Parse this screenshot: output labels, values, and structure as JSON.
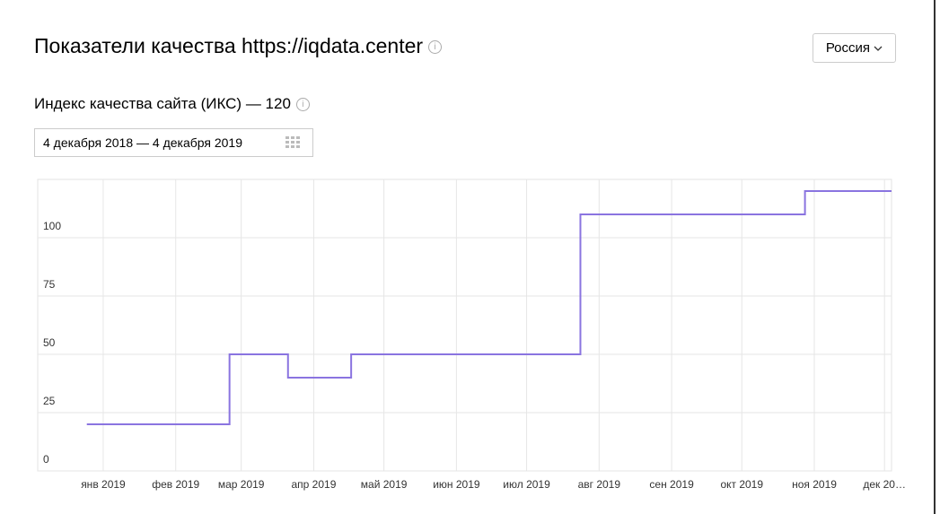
{
  "header": {
    "title": "Показатели качества https://iqdata.center",
    "region": "Россия"
  },
  "section": {
    "title": "Индекс качества сайта (ИКС) — 120",
    "date_range": "4 декабря 2018 — 4 декабря 2019"
  },
  "chart_data": {
    "type": "step-line",
    "x": [
      "2018-12-25",
      "2019-02-24",
      "2019-03-21",
      "2019-04-17",
      "2019-07-24",
      "2019-10-28",
      "2019-12-04"
    ],
    "series": [
      {
        "color": "#8a74e0",
        "values": [
          20,
          50,
          40,
          50,
          110,
          120,
          120
        ]
      }
    ],
    "xlim": [
      "2018-12-04",
      "2019-12-04"
    ],
    "xticks": [
      {
        "value": "2019-01-01",
        "label": "янв 2019"
      },
      {
        "value": "2019-02-01",
        "label": "фев 2019"
      },
      {
        "value": "2019-03-01",
        "label": "мар 2019"
      },
      {
        "value": "2019-04-01",
        "label": "апр 2019"
      },
      {
        "value": "2019-05-01",
        "label": "май 2019"
      },
      {
        "value": "2019-06-01",
        "label": "июн 2019"
      },
      {
        "value": "2019-07-01",
        "label": "июл 2019"
      },
      {
        "value": "2019-08-01",
        "label": "авг 2019"
      },
      {
        "value": "2019-09-01",
        "label": "сен 2019"
      },
      {
        "value": "2019-10-01",
        "label": "окт 2019"
      },
      {
        "value": "2019-11-01",
        "label": "ноя 2019"
      },
      {
        "value": "2019-12-01",
        "label": "дек 20…"
      }
    ],
    "ylim": [
      0,
      125
    ],
    "yticks": [
      0,
      25,
      50,
      75,
      100
    ],
    "grid": true
  }
}
